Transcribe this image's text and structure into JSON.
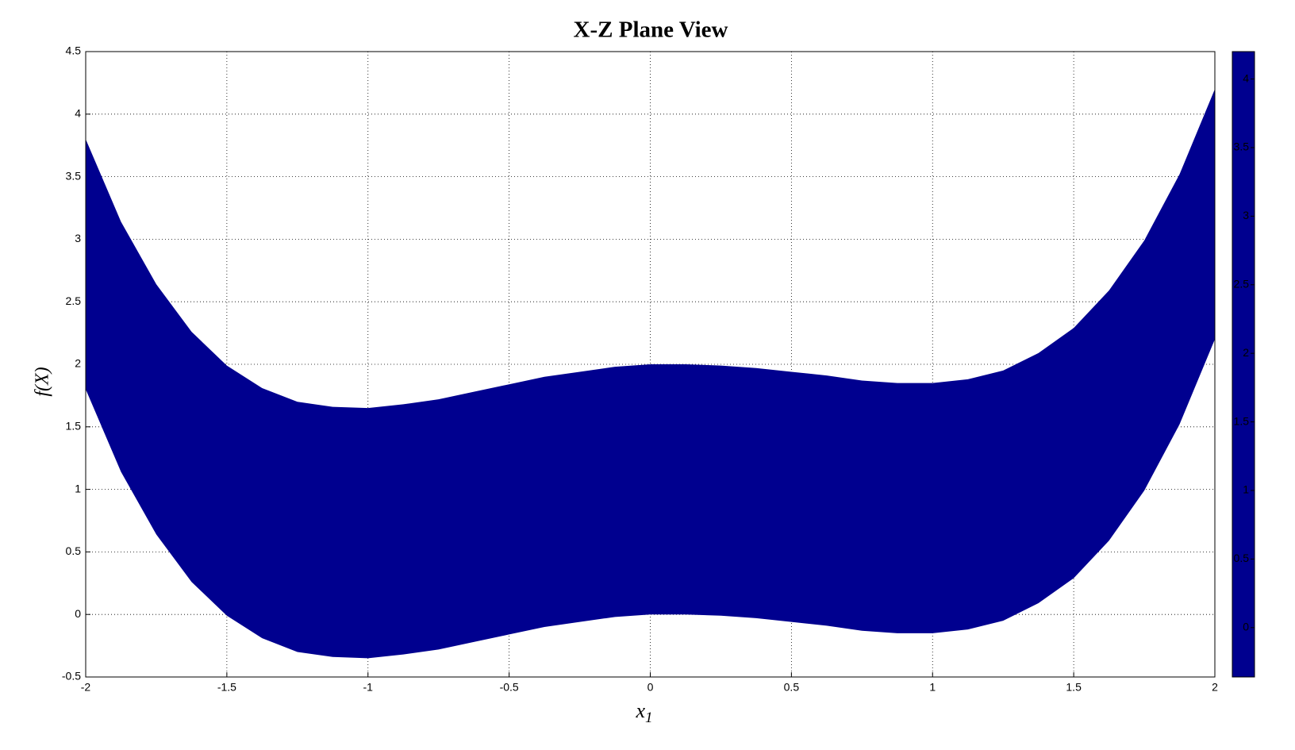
{
  "chart_data": {
    "type": "band",
    "title": "X-Z Plane View",
    "xlabel": "x",
    "xlabel_subscript": "1",
    "ylabel": "f(X)",
    "x": [
      -2,
      -1.875,
      -1.75,
      -1.625,
      -1.5,
      -1.375,
      -1.25,
      -1.125,
      -1,
      -0.875,
      -0.75,
      -0.625,
      -0.5,
      -0.375,
      -0.25,
      -0.125,
      0,
      0.125,
      0.25,
      0.375,
      0.5,
      0.625,
      0.75,
      0.875,
      1,
      1.125,
      1.25,
      1.375,
      1.5,
      1.625,
      1.75,
      1.875,
      2
    ],
    "lower": [
      1.8,
      1.14,
      0.64,
      0.26,
      -0.01,
      -0.19,
      -0.3,
      -0.34,
      -0.35,
      -0.32,
      -0.28,
      -0.22,
      -0.16,
      -0.1,
      -0.06,
      -0.02,
      0,
      0,
      -0.01,
      -0.03,
      -0.06,
      -0.09,
      -0.13,
      -0.15,
      -0.15,
      -0.12,
      -0.05,
      0.09,
      0.29,
      0.59,
      0.99,
      1.52,
      2.2
    ],
    "upper": [
      3.8,
      3.14,
      2.64,
      2.26,
      1.99,
      1.81,
      1.7,
      1.66,
      1.65,
      1.68,
      1.72,
      1.78,
      1.84,
      1.9,
      1.94,
      1.98,
      2,
      2,
      1.99,
      1.97,
      1.94,
      1.91,
      1.87,
      1.85,
      1.85,
      1.88,
      1.95,
      2.09,
      2.29,
      2.59,
      2.99,
      3.52,
      4.2
    ],
    "xlim": [
      -2,
      2
    ],
    "xticks": [
      -2,
      -1.5,
      -1,
      -0.5,
      0,
      0.5,
      1,
      1.5,
      2
    ],
    "ylim": [
      -0.5,
      4.5
    ],
    "yticks": [
      -0.5,
      0,
      0.5,
      1,
      1.5,
      2,
      2.5,
      3,
      3.5,
      4,
      4.5
    ],
    "grid": true,
    "colormap": "jet",
    "clim": [
      -0.36,
      4.2
    ],
    "cticks": [
      0,
      0.5,
      1,
      1.5,
      2,
      2.5,
      3,
      3.5,
      4
    ]
  }
}
